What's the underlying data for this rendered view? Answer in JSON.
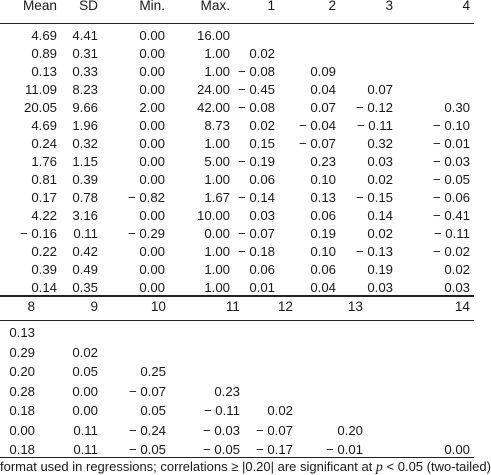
{
  "top_table": {
    "headers": [
      "Mean",
      "SD",
      "Min.",
      "Max.",
      "1",
      "2",
      "3",
      "4"
    ],
    "rows": [
      [
        "4.69",
        "4.41",
        "0.00",
        "16.00",
        "",
        "",
        "",
        ""
      ],
      [
        "0.89",
        "0.31",
        "0.00",
        "1.00",
        "0.02",
        "",
        "",
        ""
      ],
      [
        "0.13",
        "0.33",
        "0.00",
        "1.00",
        "− 0.08",
        "0.09",
        "",
        ""
      ],
      [
        "11.09",
        "8.23",
        "0.00",
        "24.00",
        "− 0.45",
        "0.04",
        "0.07",
        ""
      ],
      [
        "20.05",
        "9.66",
        "2.00",
        "42.00",
        "− 0.08",
        "0.07",
        "− 0.12",
        "0.30"
      ],
      [
        "4.69",
        "1.96",
        "0.00",
        "8.73",
        "0.02",
        "− 0.04",
        "− 0.11",
        "− 0.10"
      ],
      [
        "0.24",
        "0.32",
        "0.00",
        "1.00",
        "0.15",
        "− 0.07",
        "0.32",
        "− 0.01"
      ],
      [
        "1.76",
        "1.15",
        "0.00",
        "5.00",
        "− 0.19",
        "0.23",
        "0.03",
        "− 0.03"
      ],
      [
        "0.81",
        "0.39",
        "0.00",
        "1.00",
        "0.06",
        "0.10",
        "0.02",
        "− 0.05"
      ],
      [
        "0.17",
        "0.78",
        "− 0.82",
        "1.67",
        "− 0.14",
        "0.13",
        "− 0.15",
        "− 0.06"
      ],
      [
        "4.22",
        "3.16",
        "0.00",
        "10.00",
        "0.03",
        "0.06",
        "0.14",
        "− 0.41"
      ],
      [
        "− 0.16",
        "0.11",
        "− 0.29",
        "0.00",
        "− 0.07",
        "0.19",
        "0.02",
        "− 0.11"
      ],
      [
        "0.22",
        "0.42",
        "0.00",
        "1.00",
        "− 0.18",
        "0.10",
        "− 0.13",
        "− 0.02"
      ],
      [
        "0.39",
        "0.49",
        "0.00",
        "1.00",
        "0.06",
        "0.06",
        "0.19",
        "0.02"
      ],
      [
        "0.14",
        "0.35",
        "0.00",
        "1.00",
        "0.01",
        "0.04",
        "0.03",
        "0.03"
      ]
    ]
  },
  "bottom_table": {
    "headers": [
      "8",
      "9",
      "10",
      "11",
      "12",
      "13",
      "14"
    ],
    "rows": [
      [
        "0.13",
        "",
        "",
        "",
        "",
        "",
        ""
      ],
      [
        "0.29",
        "0.02",
        "",
        "",
        "",
        "",
        ""
      ],
      [
        "0.20",
        "0.05",
        "0.25",
        "",
        "",
        "",
        ""
      ],
      [
        "0.28",
        "0.00",
        "− 0.07",
        "0.23",
        "",
        "",
        ""
      ],
      [
        "0.18",
        "0.00",
        "0.05",
        "− 0.11",
        "0.02",
        "",
        ""
      ],
      [
        "0.00",
        "0.11",
        "− 0.24",
        "− 0.03",
        "− 0.07",
        "0.20",
        ""
      ],
      [
        "0.18",
        "0.11",
        "− 0.05",
        "− 0.05",
        "− 0.17",
        "− 0.01",
        "0.00"
      ]
    ]
  },
  "footnote": {
    "lead": "format used in regressions; correlations ≥ |0.20| are significant at ",
    "p_symbol": "p",
    "tail": " < 0.05 (two-tailed)"
  }
}
